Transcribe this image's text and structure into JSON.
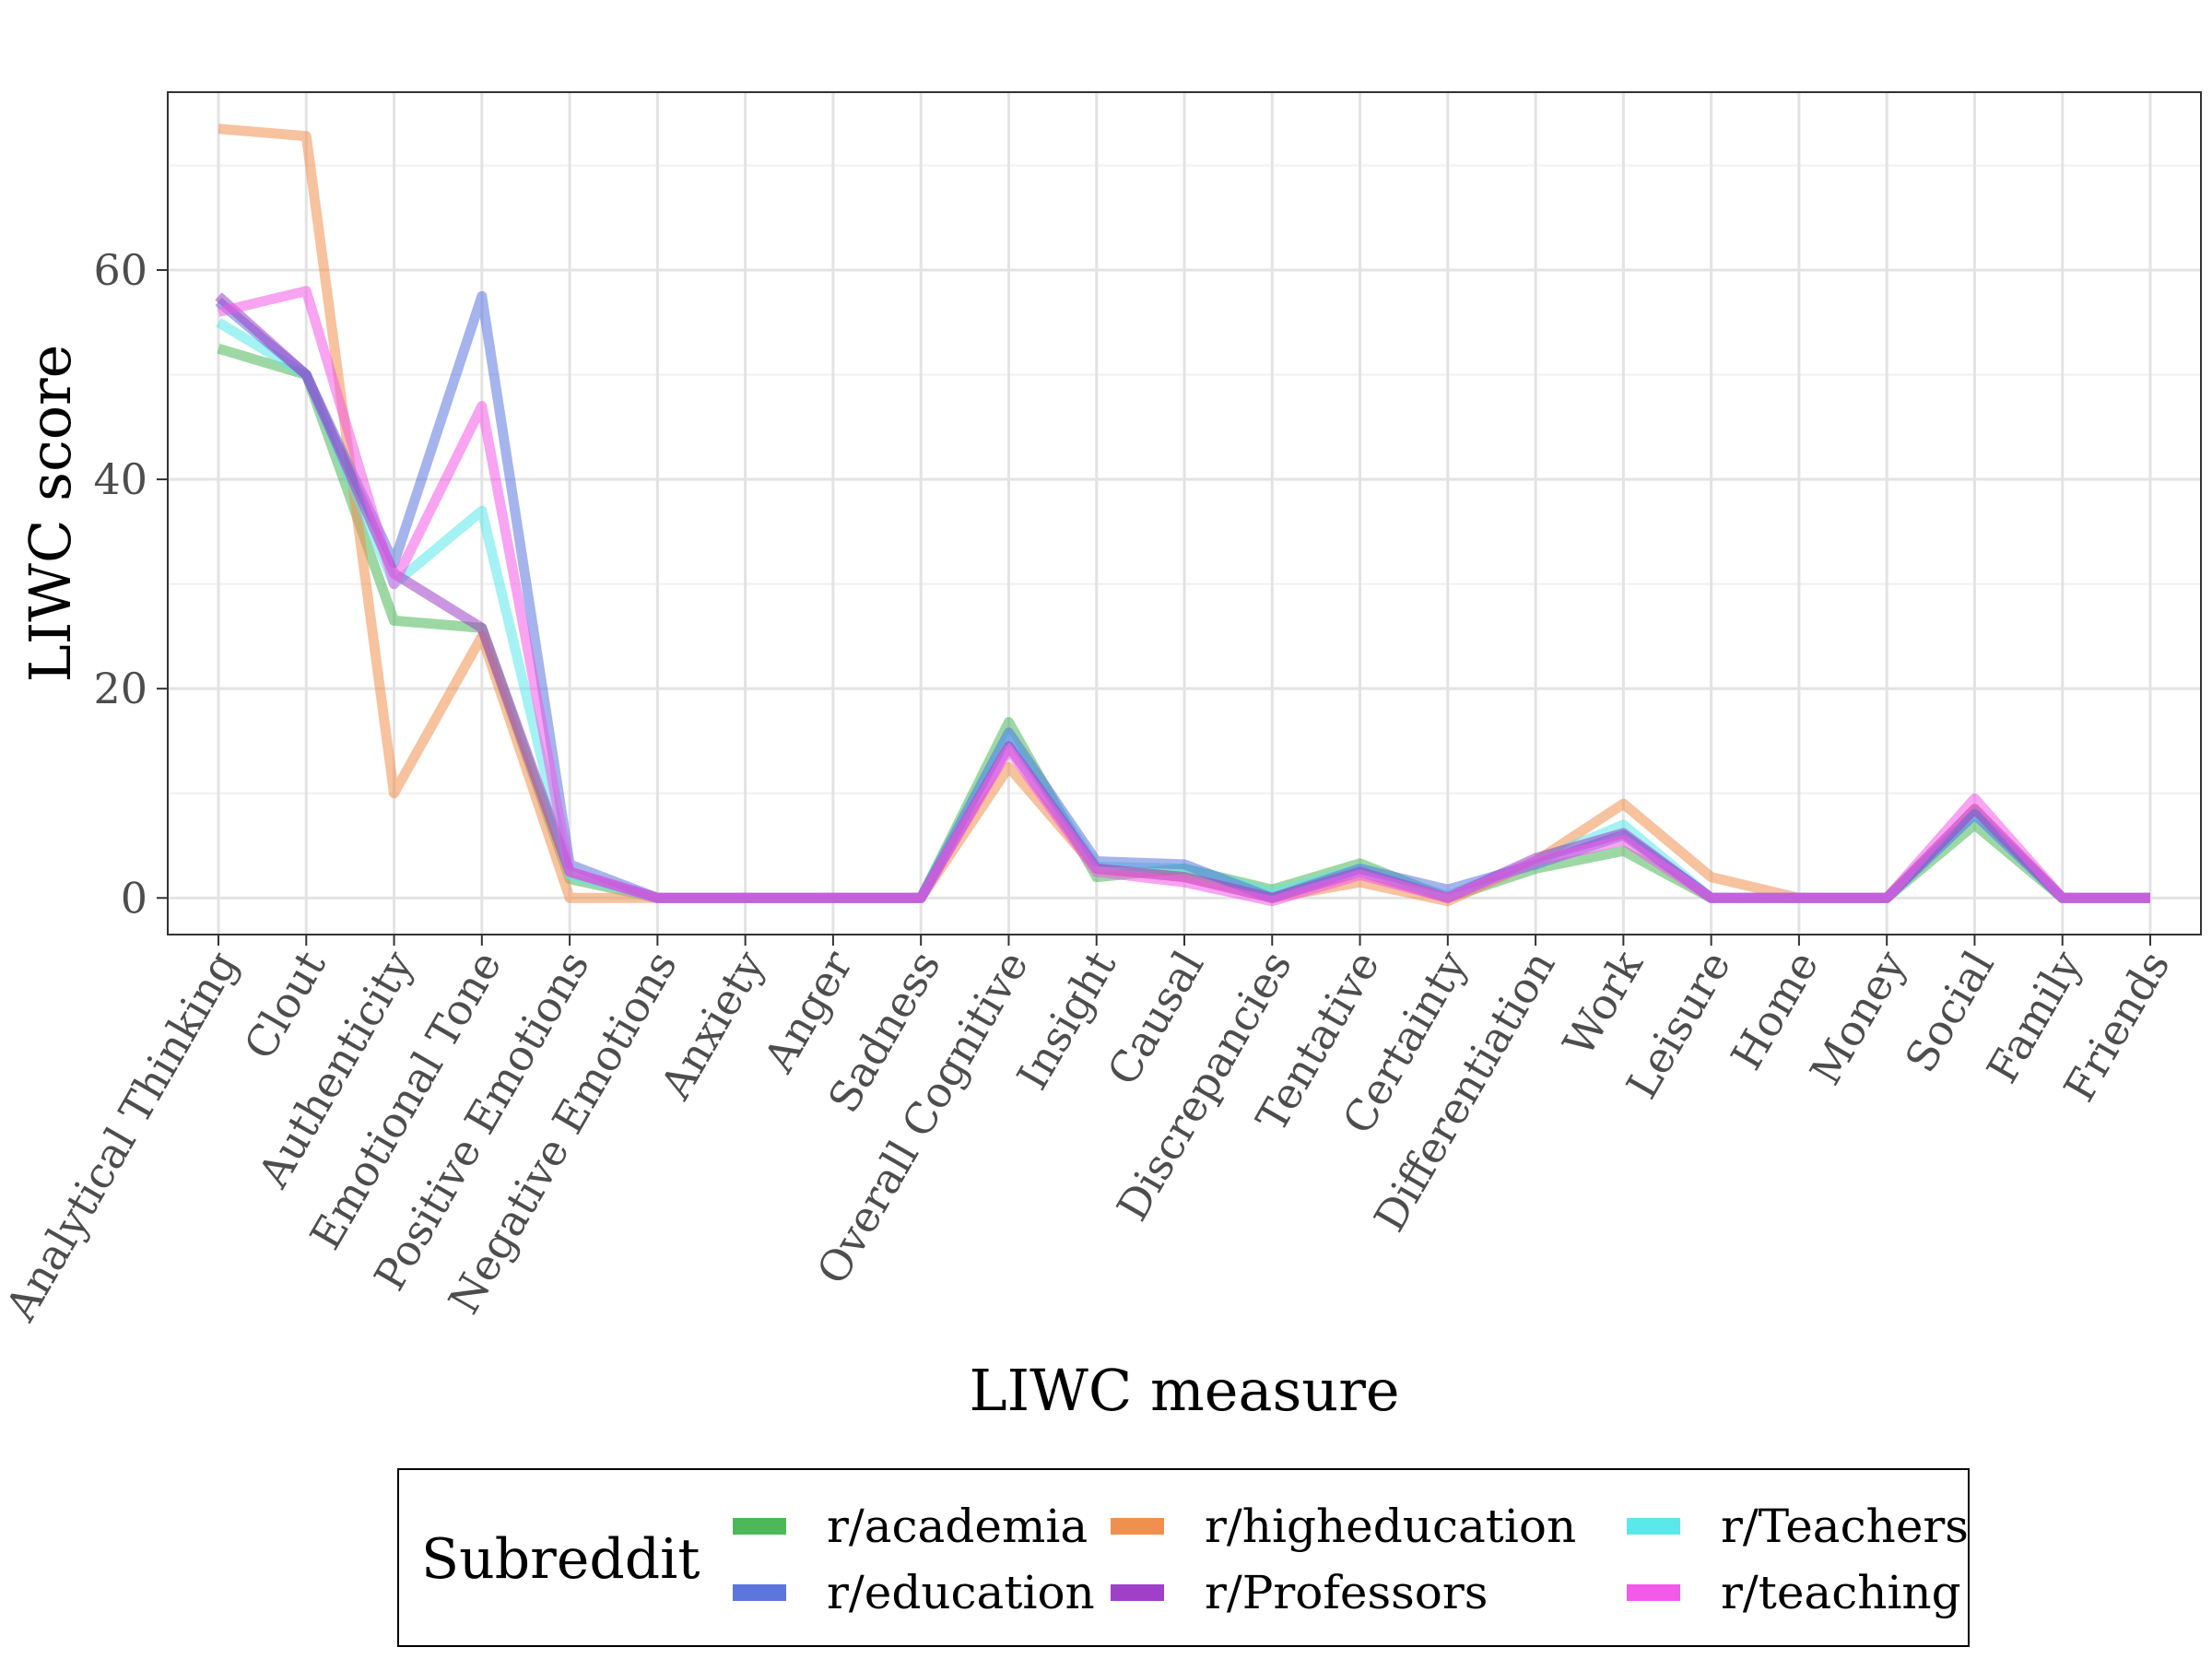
{
  "chart_data": {
    "type": "line",
    "xlabel": "LIWC measure",
    "ylabel": "LIWC score",
    "ylim": [
      -3.5,
      77
    ],
    "yticks": [
      0,
      20,
      40,
      60
    ],
    "grid": true,
    "legend": {
      "title": "Subreddit",
      "placement": "bottom"
    },
    "categories": [
      "Analytical Thinking",
      "Clout",
      "Authenticity",
      "Emotional Tone",
      "Positive Emotions",
      "Negative Emotions",
      "Anxiety",
      "Anger",
      "Sadness",
      "Overall Cognitive",
      "Insight",
      "Causal",
      "Discrepancies",
      "Tentative",
      "Certainty",
      "Differentiation",
      "Work",
      "Leisure",
      "Home",
      "Money",
      "Social",
      "Family",
      "Friends"
    ],
    "series": [
      {
        "name": "r/academia",
        "color": "#4DB85A",
        "values": [
          52.5,
          50,
          26.5,
          25.8,
          1.8,
          0,
          0,
          0,
          0,
          16.8,
          2,
          2.8,
          0.8,
          3.3,
          0,
          2.8,
          4.5,
          0,
          0,
          0,
          7,
          0,
          0
        ]
      },
      {
        "name": "r/higheducation",
        "color": "#F0904E",
        "values": [
          73.5,
          72.8,
          10,
          25,
          0,
          0,
          0,
          0,
          0,
          12.5,
          2.8,
          2,
          0,
          1.5,
          -0.3,
          3.5,
          9,
          2,
          0,
          0,
          8.5,
          0,
          0
        ]
      },
      {
        "name": "r/Teachers",
        "color": "#5AE8EA",
        "values": [
          55,
          50,
          30,
          37,
          2.2,
          0,
          0,
          0,
          0,
          15.5,
          3,
          2.8,
          0.5,
          2.8,
          0.2,
          3.5,
          7,
          0,
          0,
          0,
          8,
          0,
          0
        ]
      },
      {
        "name": "r/education",
        "color": "#5B76DC",
        "values": [
          57,
          50,
          32,
          57.5,
          3.2,
          0,
          0,
          0,
          0,
          15.8,
          3.5,
          3.2,
          0,
          2.8,
          0.8,
          3.2,
          6,
          0,
          0,
          0,
          8,
          0,
          0
        ]
      },
      {
        "name": "r/Professors",
        "color": "#A040C8",
        "values": [
          57.5,
          50,
          31,
          25.8,
          2.5,
          0,
          0,
          0,
          0,
          14.5,
          2.8,
          2,
          0,
          2.5,
          0,
          3.8,
          6.2,
          0,
          0,
          0,
          8.5,
          0,
          0
        ]
      },
      {
        "name": "r/teaching",
        "color": "#F25AE8",
        "values": [
          56,
          58,
          30,
          47,
          2.5,
          0,
          0,
          0,
          0,
          14.2,
          2.5,
          1.5,
          -0.3,
          2.2,
          0,
          3.5,
          5.5,
          0,
          0,
          0,
          9.5,
          0,
          0
        ]
      }
    ],
    "legend_order": [
      "r/academia",
      "r/education",
      "r/higheducation",
      "r/Professors",
      "r/Teachers",
      "r/teaching"
    ]
  }
}
